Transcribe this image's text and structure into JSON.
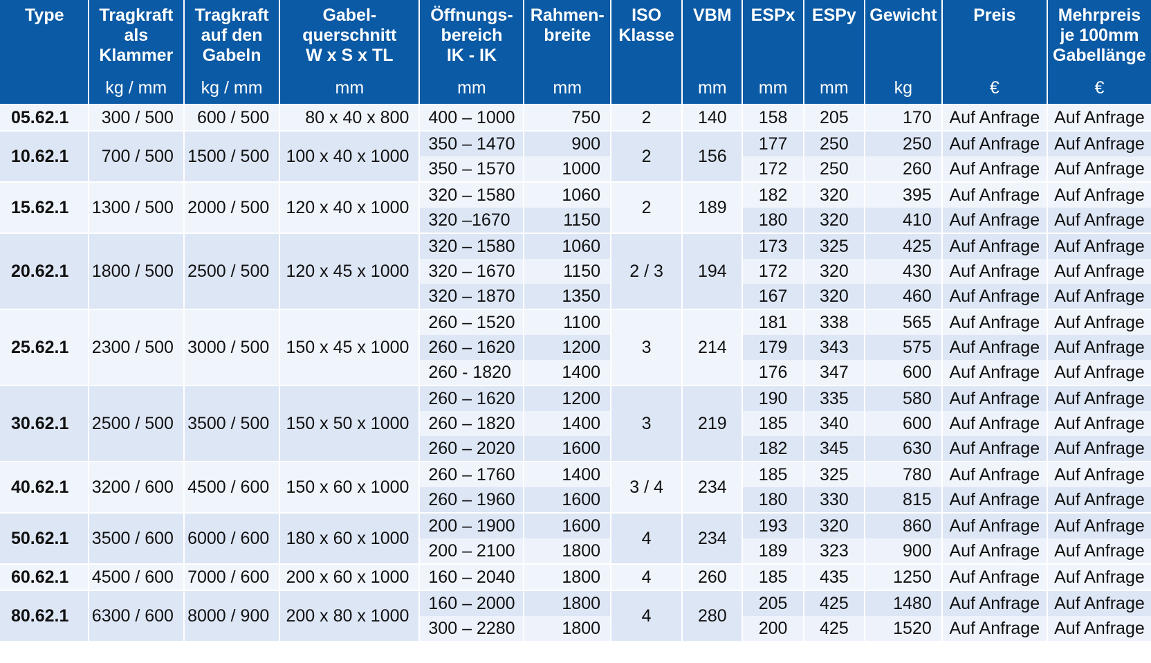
{
  "header": {
    "type": [
      "Type"
    ],
    "tragkraft_klammer": [
      "Tragkraft",
      "als",
      "Klammer"
    ],
    "tragkraft_klammer_unit": "kg / mm",
    "tragkraft_gabeln": [
      "Tragkraft",
      "auf den",
      "Gabeln"
    ],
    "tragkraft_gabeln_unit": "kg / mm",
    "gabelquerschnitt": [
      "Gabel-",
      "querschnitt",
      "W x S x TL"
    ],
    "gabelquerschnitt_unit": "mm",
    "oeffnungsbereich": [
      "Öffnungs-",
      "bereich",
      "IK - IK"
    ],
    "oeffnungsbereich_unit": "mm",
    "rahmenbreite": [
      "Rahmen-",
      "breite"
    ],
    "rahmenbreite_unit": "mm",
    "iso": [
      "ISO",
      "Klasse"
    ],
    "vbm": [
      "VBM"
    ],
    "vbm_unit": "mm",
    "espx": [
      "ESPx"
    ],
    "espx_unit": "mm",
    "espy": [
      "ESPy"
    ],
    "espy_unit": "mm",
    "gewicht": [
      "Gewicht"
    ],
    "gewicht_unit": "kg",
    "preis": [
      "Preis"
    ],
    "preis_unit": "€",
    "mehrpreis": [
      "Mehrpreis",
      "je 100mm",
      "Gabellänge"
    ],
    "mehrpreis_unit": "€"
  },
  "groups": [
    {
      "type": "05.62.1",
      "klammer": "300 / 500",
      "gabeln": "600 / 500",
      "querschnitt": "80 x 40 x   800",
      "iso": "2",
      "vbm": "140",
      "rows": [
        {
          "oeffnung": "400 – 1000",
          "rahmen": "750",
          "espx": "158",
          "espy": "205",
          "gewicht": "170",
          "preis": "Auf Anfrage",
          "mehrpreis": "Auf Anfrage"
        }
      ]
    },
    {
      "type": "10.62.1",
      "klammer": "700 / 500",
      "gabeln": "1500 / 500",
      "querschnitt": "100 x 40 x 1000",
      "iso": "2",
      "vbm": "156",
      "rows": [
        {
          "oeffnung": "350 – 1470",
          "rahmen": "900",
          "espx": "177",
          "espy": "250",
          "gewicht": "250",
          "preis": "Auf Anfrage",
          "mehrpreis": "Auf Anfrage"
        },
        {
          "oeffnung": "350 – 1570",
          "rahmen": "1000",
          "espx": "172",
          "espy": "250",
          "gewicht": "260",
          "preis": "Auf Anfrage",
          "mehrpreis": "Auf Anfrage"
        }
      ]
    },
    {
      "type": "15.62.1",
      "klammer": "1300 / 500",
      "gabeln": "2000 / 500",
      "querschnitt": "120 x 40 x 1000",
      "iso": "2",
      "vbm": "189",
      "rows": [
        {
          "oeffnung": "320 – 1580",
          "rahmen": "1060",
          "espx": "182",
          "espy": "320",
          "gewicht": "395",
          "preis": "Auf Anfrage",
          "mehrpreis": "Auf Anfrage"
        },
        {
          "oeffnung": "320  –1670",
          "rahmen": "1150",
          "espx": "180",
          "espy": "320",
          "gewicht": "410",
          "preis": "Auf Anfrage",
          "mehrpreis": "Auf Anfrage"
        }
      ]
    },
    {
      "type": "20.62.1",
      "klammer": "1800 / 500",
      "gabeln": "2500 / 500",
      "querschnitt": "120 x 45 x 1000",
      "iso": "2  /  3",
      "vbm": "194",
      "rows": [
        {
          "oeffnung": "320 – 1580",
          "rahmen": "1060",
          "espx": "173",
          "espy": "325",
          "gewicht": "425",
          "preis": "Auf Anfrage",
          "mehrpreis": "Auf Anfrage"
        },
        {
          "oeffnung": "320 – 1670",
          "rahmen": "1150",
          "espx": "172",
          "espy": "320",
          "gewicht": "430",
          "preis": "Auf Anfrage",
          "mehrpreis": "Auf Anfrage"
        },
        {
          "oeffnung": "320 – 1870",
          "rahmen": "1350",
          "espx": "167",
          "espy": "320",
          "gewicht": "460",
          "preis": "Auf Anfrage",
          "mehrpreis": "Auf Anfrage"
        }
      ]
    },
    {
      "type": "25.62.1",
      "klammer": "2300 / 500",
      "gabeln": "3000 / 500",
      "querschnitt": "150 x 45 x 1000",
      "iso": "3",
      "vbm": "214",
      "rows": [
        {
          "oeffnung": "260 – 1520",
          "rahmen": "1100",
          "espx": "181",
          "espy": "338",
          "gewicht": "565",
          "preis": "Auf Anfrage",
          "mehrpreis": "Auf Anfrage"
        },
        {
          "oeffnung": "260 – 1620",
          "rahmen": "1200",
          "espx": "179",
          "espy": "343",
          "gewicht": "575",
          "preis": "Auf Anfrage",
          "mehrpreis": "Auf Anfrage"
        },
        {
          "oeffnung": "260 - 1820",
          "rahmen": "1400",
          "espx": "176",
          "espy": "347",
          "gewicht": "600",
          "preis": "Auf Anfrage",
          "mehrpreis": "Auf Anfrage"
        }
      ]
    },
    {
      "type": "30.62.1",
      "klammer": "2500 / 500",
      "gabeln": "3500 / 500",
      "querschnitt": "150 x 50 x 1000",
      "iso": "3",
      "vbm": "219",
      "rows": [
        {
          "oeffnung": "260 – 1620",
          "rahmen": "1200",
          "espx": "190",
          "espy": "335",
          "gewicht": "580",
          "preis": "Auf Anfrage",
          "mehrpreis": "Auf Anfrage"
        },
        {
          "oeffnung": "260 – 1820",
          "rahmen": "1400",
          "espx": "185",
          "espy": "340",
          "gewicht": "600",
          "preis": "Auf Anfrage",
          "mehrpreis": "Auf Anfrage"
        },
        {
          "oeffnung": "260 – 2020",
          "rahmen": "1600",
          "espx": "182",
          "espy": "345",
          "gewicht": "630",
          "preis": "Auf Anfrage",
          "mehrpreis": "Auf Anfrage"
        }
      ]
    },
    {
      "type": "40.62.1",
      "klammer": "3200 / 600",
      "gabeln": "4500 / 600",
      "querschnitt": "150 x 60 x 1000",
      "iso": "3  /  4",
      "vbm": "234",
      "rows": [
        {
          "oeffnung": "260 – 1760",
          "rahmen": "1400",
          "espx": "185",
          "espy": "325",
          "gewicht": "780",
          "preis": "Auf Anfrage",
          "mehrpreis": "Auf Anfrage"
        },
        {
          "oeffnung": "260 – 1960",
          "rahmen": "1600",
          "espx": "180",
          "espy": "330",
          "gewicht": "815",
          "preis": "Auf Anfrage",
          "mehrpreis": "Auf Anfrage"
        }
      ]
    },
    {
      "type": "50.62.1",
      "klammer": "3500 / 600",
      "gabeln": "6000 / 600",
      "querschnitt": "180 x 60 x 1000",
      "iso": "4",
      "vbm": "234",
      "rows": [
        {
          "oeffnung": "200 – 1900",
          "rahmen": "1600",
          "espx": "193",
          "espy": "320",
          "gewicht": "860",
          "preis": "Auf Anfrage",
          "mehrpreis": "Auf Anfrage"
        },
        {
          "oeffnung": "200 – 2100",
          "rahmen": "1800",
          "espx": "189",
          "espy": "323",
          "gewicht": "900",
          "preis": "Auf Anfrage",
          "mehrpreis": "Auf Anfrage"
        }
      ]
    },
    {
      "type": "60.62.1",
      "klammer": "4500 / 600",
      "gabeln": "7000 / 600",
      "querschnitt": "200 x 60 x 1000",
      "iso": "4",
      "vbm": "260",
      "rows": [
        {
          "oeffnung": "160 – 2040",
          "rahmen": "1800",
          "espx": "185",
          "espy": "435",
          "gewicht": "1250",
          "preis": "Auf Anfrage",
          "mehrpreis": "Auf Anfrage"
        }
      ]
    },
    {
      "type": "80.62.1",
      "klammer": "6300 / 600",
      "gabeln": "8000 / 900",
      "querschnitt": "200 x 80 x 1000",
      "iso": "4",
      "vbm": "280",
      "rows": [
        {
          "oeffnung": "160 – 2000",
          "rahmen": "1800",
          "espx": "205",
          "espy": "425",
          "gewicht": "1480",
          "preis": "Auf Anfrage",
          "mehrpreis": "Auf Anfrage"
        },
        {
          "oeffnung": "300 – 2280",
          "rahmen": "1800",
          "espx": "200",
          "espy": "425",
          "gewicht": "1520",
          "preis": "Auf Anfrage",
          "mehrpreis": "Auf Anfrage"
        }
      ]
    }
  ]
}
